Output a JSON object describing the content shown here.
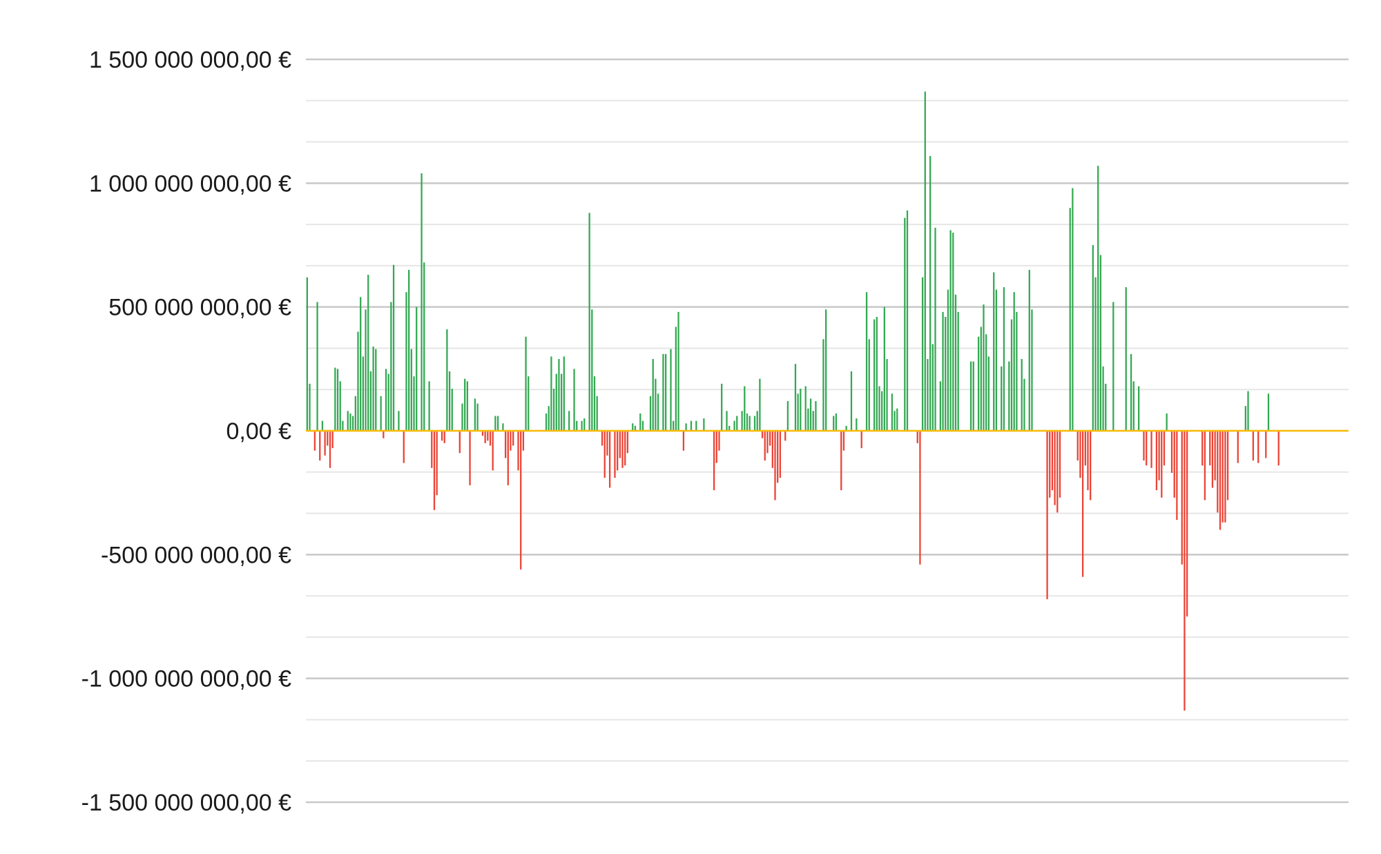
{
  "chart_data": {
    "type": "bar",
    "title": "",
    "xlabel": "",
    "ylabel": "",
    "ylim": [
      -1500000000,
      1500000000
    ],
    "y_ticks": [
      1500000000,
      1000000000,
      500000000,
      0,
      -500000000,
      -1000000000,
      -1500000000
    ],
    "y_tick_labels": [
      "1 500 000 000,00 €",
      "1 000 000 000,00 €",
      "500 000 000,00 €",
      "0,00 €",
      "-500 000 000,00 €",
      "-1 000 000 000,00 €",
      "-1 500 000 000,00 €"
    ],
    "grid": true,
    "legend": "none",
    "colors": {
      "positive": "#34a853",
      "negative": "#ea4335",
      "zero_line": "#fbbc04",
      "major_grid": "#c8c8c8",
      "minor_grid": "#e6e6e6"
    },
    "values": [
      620000000,
      190000000,
      0,
      -80000000,
      520000000,
      -120000000,
      40000000,
      -100000000,
      -60000000,
      -150000000,
      -70000000,
      255000000,
      250000000,
      200000000,
      40000000,
      0,
      80000000,
      70000000,
      60000000,
      140000000,
      400000000,
      540000000,
      300000000,
      490000000,
      630000000,
      240000000,
      340000000,
      330000000,
      0,
      140000000,
      -30000000,
      250000000,
      230000000,
      520000000,
      670000000,
      0,
      80000000,
      0,
      -130000000,
      560000000,
      650000000,
      330000000,
      220000000,
      500000000,
      0,
      1040000000,
      680000000,
      0,
      200000000,
      -150000000,
      -320000000,
      -260000000,
      0,
      -40000000,
      -50000000,
      410000000,
      240000000,
      170000000,
      0,
      0,
      -90000000,
      110000000,
      210000000,
      200000000,
      -220000000,
      0,
      130000000,
      110000000,
      0,
      -20000000,
      -50000000,
      -40000000,
      -60000000,
      -160000000,
      60000000,
      60000000,
      0,
      30000000,
      -110000000,
      -220000000,
      -80000000,
      -60000000,
      0,
      -160000000,
      -560000000,
      -80000000,
      380000000,
      220000000,
      0,
      0,
      0,
      0,
      0,
      0,
      70000000,
      100000000,
      300000000,
      170000000,
      230000000,
      290000000,
      230000000,
      300000000,
      0,
      80000000,
      0,
      250000000,
      40000000,
      0,
      40000000,
      50000000,
      0,
      880000000,
      490000000,
      220000000,
      140000000,
      0,
      -60000000,
      -190000000,
      -100000000,
      -230000000,
      0,
      -190000000,
      -160000000,
      -110000000,
      -150000000,
      -140000000,
      -90000000,
      0,
      30000000,
      20000000,
      0,
      70000000,
      40000000,
      0,
      0,
      140000000,
      290000000,
      210000000,
      150000000,
      0,
      310000000,
      310000000,
      0,
      330000000,
      40000000,
      420000000,
      480000000,
      0,
      -80000000,
      30000000,
      0,
      40000000,
      0,
      40000000,
      0,
      0,
      50000000,
      0,
      0,
      0,
      -240000000,
      -130000000,
      -80000000,
      190000000,
      0,
      80000000,
      20000000,
      0,
      40000000,
      60000000,
      0,
      80000000,
      180000000,
      70000000,
      60000000,
      0,
      60000000,
      80000000,
      210000000,
      -30000000,
      -120000000,
      -90000000,
      -60000000,
      -150000000,
      -280000000,
      -210000000,
      -190000000,
      0,
      -40000000,
      120000000,
      0,
      0,
      270000000,
      150000000,
      170000000,
      0,
      180000000,
      90000000,
      130000000,
      80000000,
      120000000,
      0,
      0,
      370000000,
      490000000,
      0,
      0,
      60000000,
      70000000,
      0,
      -240000000,
      -80000000,
      20000000,
      0,
      240000000,
      0,
      50000000,
      0,
      -70000000,
      0,
      560000000,
      370000000,
      0,
      450000000,
      460000000,
      180000000,
      160000000,
      500000000,
      290000000,
      0,
      150000000,
      80000000,
      90000000,
      0,
      0,
      860000000,
      890000000,
      0,
      0,
      0,
      -50000000,
      -540000000,
      620000000,
      1370000000,
      290000000,
      1110000000,
      350000000,
      820000000,
      0,
      200000000,
      480000000,
      460000000,
      570000000,
      810000000,
      800000000,
      550000000,
      480000000,
      0,
      0,
      0,
      0,
      280000000,
      280000000,
      0,
      380000000,
      420000000,
      510000000,
      390000000,
      300000000,
      0,
      640000000,
      570000000,
      0,
      260000000,
      580000000,
      0,
      280000000,
      450000000,
      560000000,
      480000000,
      0,
      290000000,
      210000000,
      0,
      650000000,
      490000000,
      0,
      0,
      0,
      0,
      0,
      -680000000,
      -270000000,
      -240000000,
      -300000000,
      -330000000,
      -270000000,
      0,
      0,
      0,
      900000000,
      980000000,
      0,
      -120000000,
      -190000000,
      -590000000,
      -140000000,
      -240000000,
      -280000000,
      750000000,
      620000000,
      1070000000,
      710000000,
      260000000,
      190000000,
      0,
      0,
      520000000,
      0,
      0,
      0,
      0,
      580000000,
      0,
      310000000,
      200000000,
      0,
      180000000,
      0,
      -120000000,
      -140000000,
      0,
      -150000000,
      0,
      -240000000,
      -200000000,
      -270000000,
      -140000000,
      70000000,
      0,
      -170000000,
      -270000000,
      -360000000,
      0,
      -540000000,
      -1130000000,
      -750000000,
      0,
      0,
      0,
      0,
      0,
      -140000000,
      -280000000,
      0,
      -140000000,
      -230000000,
      -200000000,
      -330000000,
      -400000000,
      -370000000,
      -370000000,
      -280000000,
      0,
      0,
      0,
      -130000000,
      0,
      0,
      100000000,
      160000000,
      0,
      -120000000,
      0,
      -130000000,
      0,
      0,
      -110000000,
      150000000,
      0,
      0,
      0,
      -140000000,
      0,
      0,
      0,
      0,
      0,
      0,
      0,
      0,
      0,
      0,
      0,
      0,
      0,
      0,
      0,
      0,
      0,
      0,
      0,
      0,
      0,
      0,
      0,
      0,
      0,
      0,
      0
    ]
  }
}
